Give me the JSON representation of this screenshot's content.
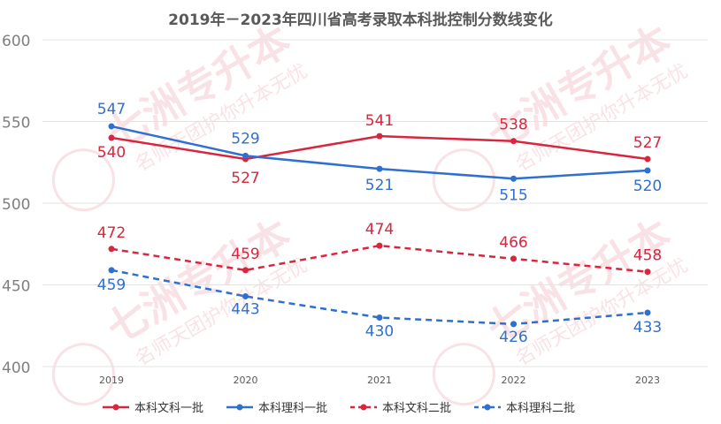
{
  "chart_data": {
    "type": "line",
    "title": "2019年－2023年四川省高考录取本科批控制分数线变化",
    "xlabel": "",
    "ylabel": "",
    "categories": [
      "2019",
      "2020",
      "2021",
      "2022",
      "2023"
    ],
    "ylim": [
      400,
      600
    ],
    "yticks": [
      400,
      450,
      500,
      550,
      600
    ],
    "grid": "horizontal",
    "legend_position": "bottom",
    "series": [
      {
        "name": "本科文科一批",
        "values": [
          540,
          527,
          541,
          538,
          527
        ],
        "color": "#d7263d",
        "dashed": false
      },
      {
        "name": "本科理科一批",
        "values": [
          547,
          529,
          521,
          515,
          520
        ],
        "color": "#2f6fd0",
        "dashed": false
      },
      {
        "name": "本科文科二批",
        "values": [
          472,
          459,
          474,
          466,
          458
        ],
        "color": "#d7263d",
        "dashed": true
      },
      {
        "name": "本科理科二批",
        "values": [
          459,
          443,
          430,
          426,
          433
        ],
        "color": "#2f6fd0",
        "dashed": true
      }
    ],
    "watermark": [
      "七洲专升本",
      "名师天团护你升本无忧"
    ]
  }
}
